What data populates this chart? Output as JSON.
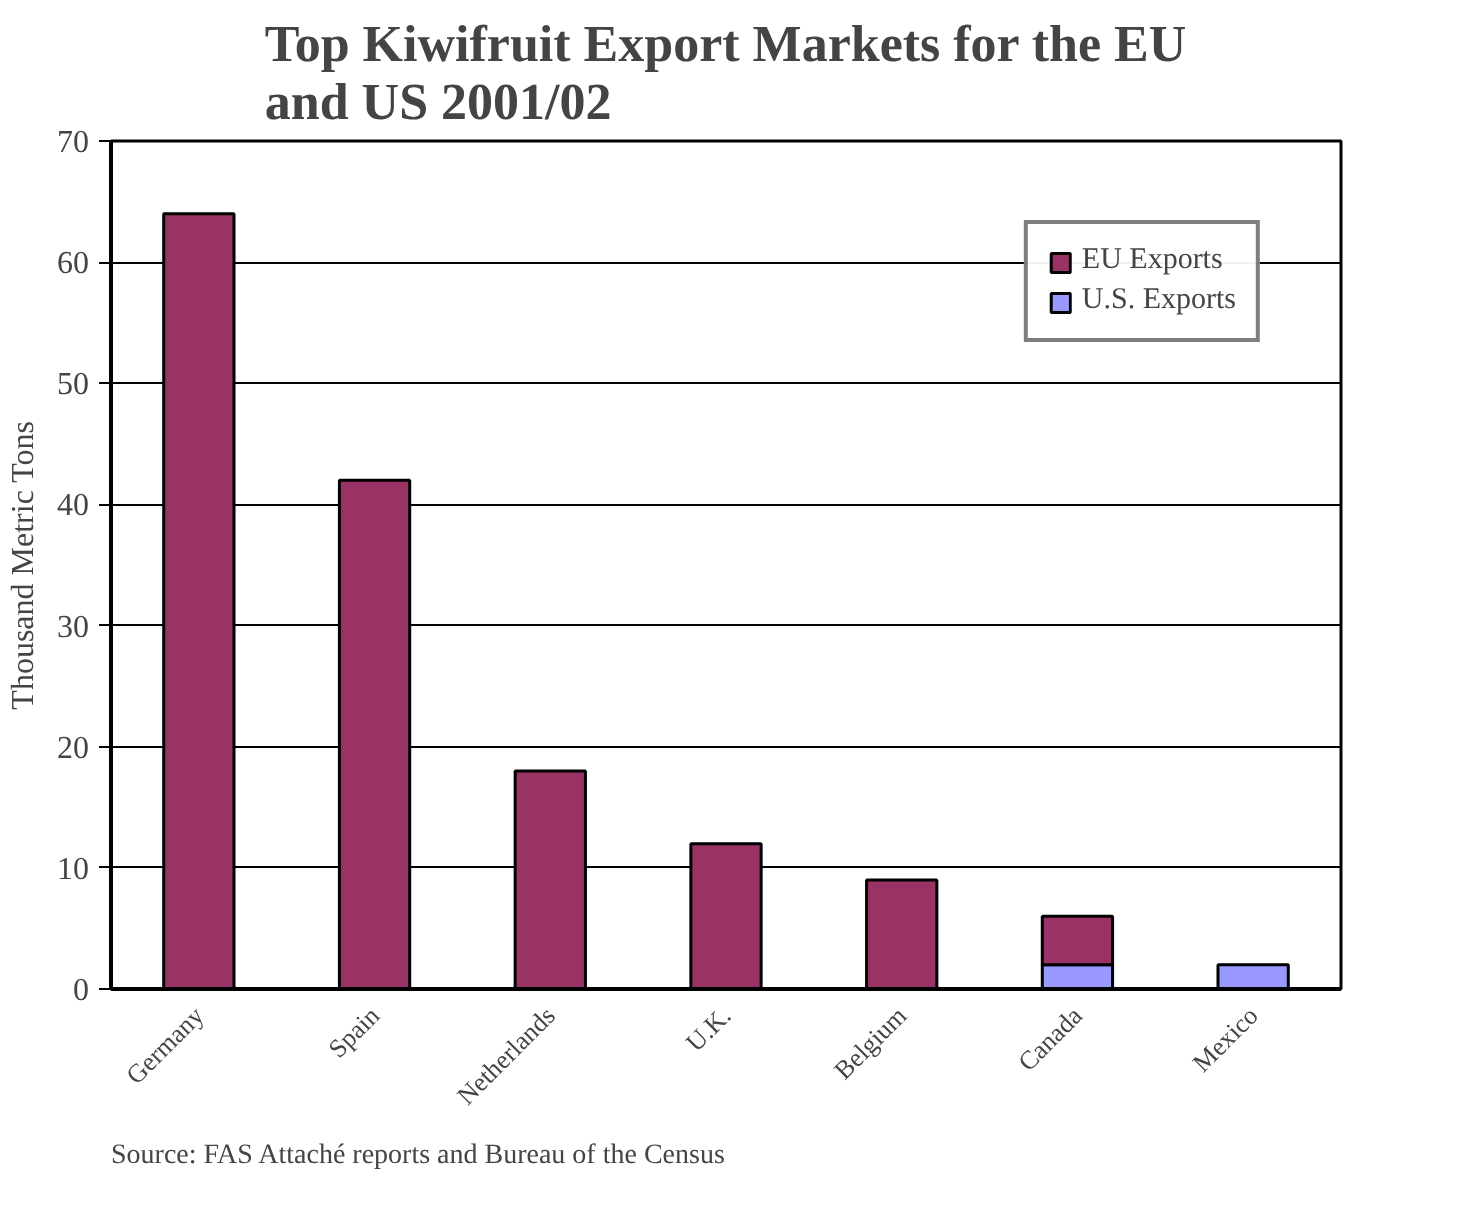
{
  "chart_data": {
    "type": "bar",
    "title": "Top Kiwifruit Export Markets for the EU and US 2001/02",
    "ylabel": "Thousand Metric Tons",
    "categories": [
      "Germany",
      "Spain",
      "Netherlands",
      "U.K.",
      "Belgium",
      "Canada",
      "Mexico"
    ],
    "stacked": true,
    "series": [
      {
        "name": "U.S. Exports",
        "color": "#9999ff",
        "values": [
          null,
          null,
          null,
          null,
          null,
          2,
          2
        ]
      },
      {
        "name": "EU Exports",
        "color": "#993366",
        "values": [
          64,
          42,
          18,
          12,
          9,
          4,
          null
        ]
      }
    ],
    "ylim": [
      0,
      70
    ],
    "yticks": [
      0,
      10,
      20,
      30,
      40,
      50,
      60,
      70
    ],
    "grid": "y",
    "legend": "top right",
    "annotations": [
      "Source: FAS Attaché reports and Bureau of the Census"
    ]
  }
}
